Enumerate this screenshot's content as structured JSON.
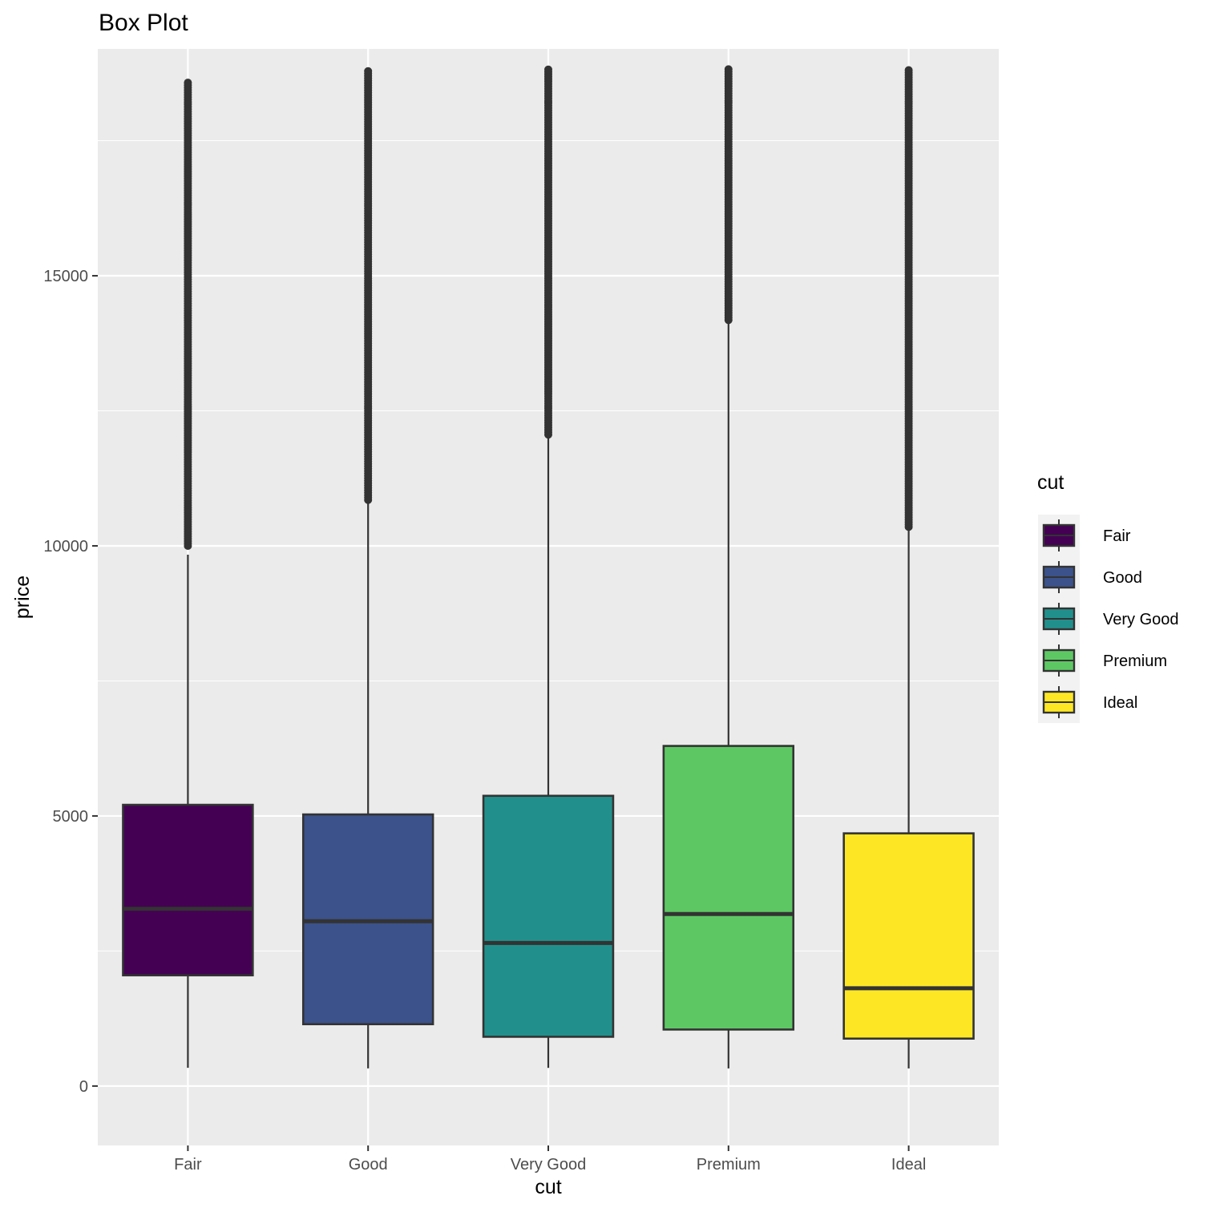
{
  "chart_data": {
    "type": "box",
    "title": "Box Plot",
    "xlabel": "cut",
    "ylabel": "price",
    "ylim": [
      -1100,
      19200
    ],
    "yticks": [
      0,
      5000,
      10000,
      15000
    ],
    "ytick_labels": [
      "0",
      "5000",
      "10000",
      "15000"
    ],
    "grid": true,
    "legend": {
      "title": "cut",
      "position": "right",
      "entries": [
        "Fair",
        "Good",
        "Very Good",
        "Premium",
        "Ideal"
      ]
    },
    "categories": [
      "Fair",
      "Good",
      "Very Good",
      "Premium",
      "Ideal"
    ],
    "colors": [
      "#440154",
      "#3B528B",
      "#21908C",
      "#5DC863",
      "#FDE725"
    ],
    "boxes": [
      {
        "name": "Fair",
        "whisker_low": 337,
        "q1": 2050,
        "median": 3282,
        "q3": 5206,
        "whisker_high": 9836,
        "outlier_range": [
          10000,
          18574
        ]
      },
      {
        "name": "Good",
        "whisker_low": 327,
        "q1": 1145,
        "median": 3051,
        "q3": 5028,
        "whisker_high": 10821,
        "outlier_range": [
          10850,
          18788
        ]
      },
      {
        "name": "Very Good",
        "whisker_low": 336,
        "q1": 912,
        "median": 2648,
        "q3": 5373,
        "whisker_high": 12052,
        "outlier_range": [
          12060,
          18818
        ]
      },
      {
        "name": "Premium",
        "whisker_low": 326,
        "q1": 1046,
        "median": 3185,
        "q3": 6296,
        "whisker_high": 14177,
        "outlier_range": [
          14180,
          18823
        ]
      },
      {
        "name": "Ideal",
        "whisker_low": 326,
        "q1": 878,
        "median": 1810,
        "q3": 4678,
        "whisker_high": 10338,
        "outlier_range": [
          10350,
          18806
        ]
      }
    ]
  }
}
